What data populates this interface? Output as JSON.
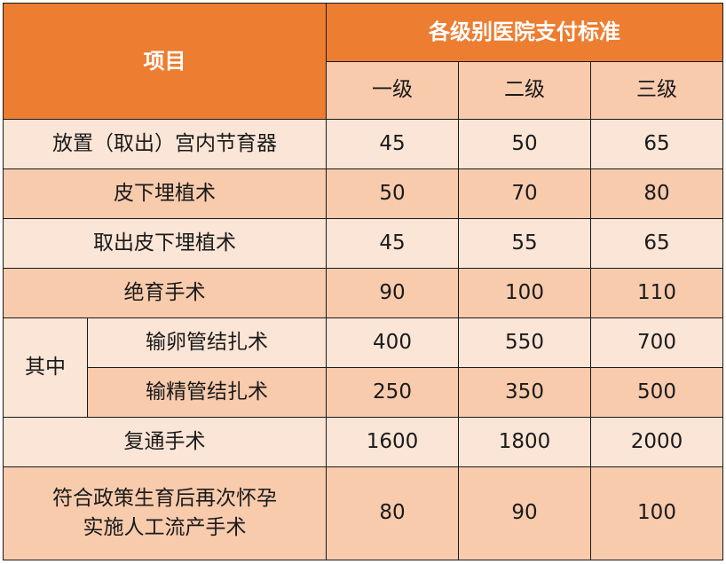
{
  "header": {
    "item": "项目",
    "group": "各级别医院支付标准",
    "levels": [
      "一级",
      "二级",
      "三级"
    ]
  },
  "sub_group_label": "其中",
  "rows": [
    {
      "name": "放置（取出）宫内节育器",
      "values": [
        "45",
        "50",
        "65"
      ]
    },
    {
      "name": "皮下埋植术",
      "values": [
        "50",
        "70",
        "80"
      ]
    },
    {
      "name": "取出皮下埋植术",
      "values": [
        "45",
        "55",
        "65"
      ]
    },
    {
      "name": "绝育手术",
      "values": [
        "90",
        "100",
        "110"
      ]
    },
    {
      "name": "输卵管结扎术",
      "values": [
        "400",
        "550",
        "700"
      ]
    },
    {
      "name": "输精管结扎术",
      "values": [
        "250",
        "350",
        "500"
      ]
    },
    {
      "name": "复通手术",
      "values": [
        "1600",
        "1800",
        "2000"
      ]
    },
    {
      "name_line1": "符合政策生育后再次怀孕",
      "name_line2": "实施人工流产手术",
      "values": [
        "80",
        "90",
        "100"
      ]
    }
  ],
  "colors": {
    "header": "#ED7D31",
    "row_light": "#FBE5D6",
    "row_dark": "#F8CBAD",
    "border": "#1a1a1a"
  }
}
